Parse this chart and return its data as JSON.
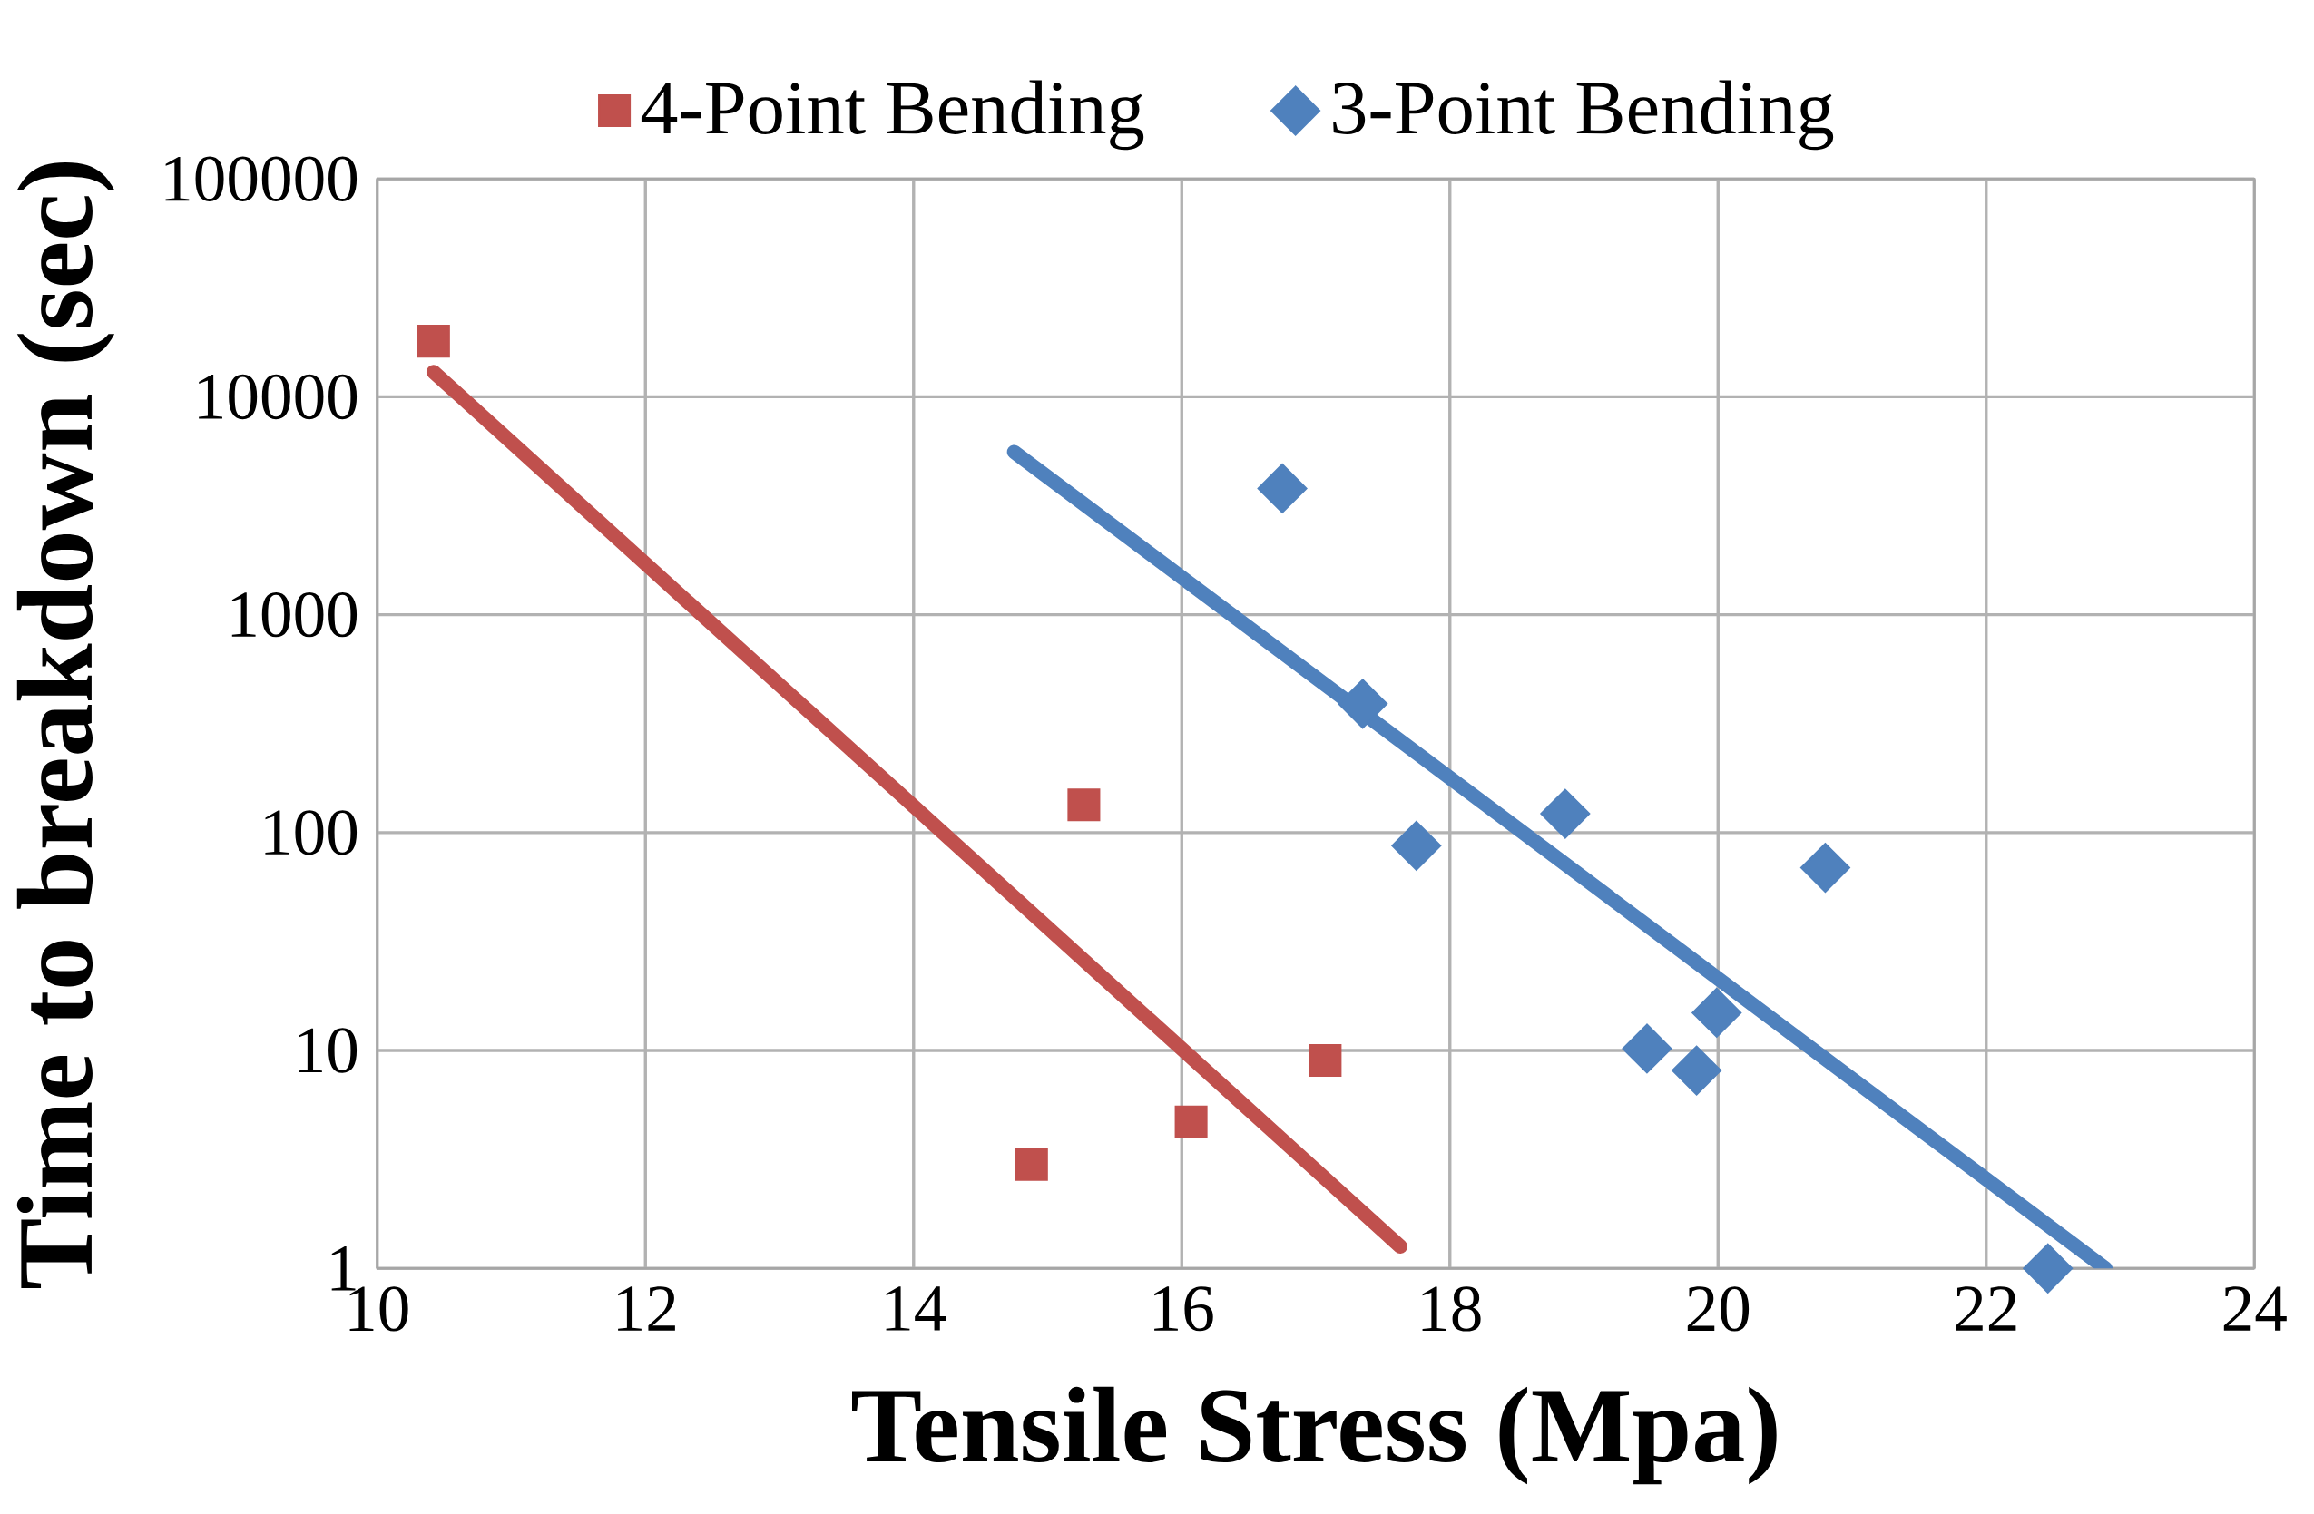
{
  "chart_data": {
    "type": "scatter",
    "xlabel": "Tensile Stress (Mpa)",
    "ylabel": "Time to breakdown  (sec)",
    "log": "y",
    "grid": true,
    "legend": "top",
    "xlim": [
      10,
      24
    ],
    "xticks": [
      10,
      12,
      14,
      16,
      18,
      20,
      22,
      24
    ],
    "ylim": [
      1,
      100000
    ],
    "yticks": [
      1,
      10,
      100,
      1000,
      10000,
      100000
    ],
    "series": [
      {
        "name": "4-Point Bending",
        "marker": "square",
        "color": "#c0504d",
        "x": [
          10.42,
          15.27,
          14.88,
          16.07,
          17.07
        ],
        "values": [
          18000,
          134,
          3.0,
          4.7,
          9.0
        ]
      },
      {
        "name": "3-Point Bending",
        "marker": "diamond",
        "color": "#4f81bd",
        "x": [
          16.75,
          17.35,
          17.75,
          18.86,
          20.8,
          19.47,
          19.84,
          19.99,
          22.46
        ],
        "values": [
          3800,
          390,
          87,
          122,
          69,
          10.2,
          8.1,
          14.9,
          1.0
        ]
      },
      {
        "type": "line",
        "marker": "none",
        "color": "#c0504d",
        "x": [
          10.42,
          17.63
        ],
        "values": [
          13000,
          1.26
        ]
      },
      {
        "type": "line",
        "marker": "none",
        "color": "#4f81bd",
        "x": [
          14.75,
          22.89
        ],
        "values": [
          5580,
          1.0
        ]
      }
    ]
  }
}
